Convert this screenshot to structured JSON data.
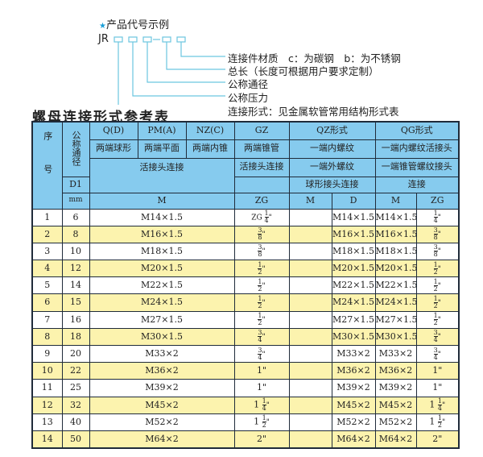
{
  "legend": {
    "heading": "产品代号示例",
    "star_icon": "star-icon",
    "prefix": "JR",
    "separator": "-",
    "line_color": "#6cc6e0",
    "labels": [
      "连接件材质　c：为碳钢　b：为不锈钢",
      "总长（长度可根据用户要求定制）",
      "公称通径",
      "公称压力",
      "连接形式：见金属软管常用结构形式表"
    ]
  },
  "title": "螺母连接形式参考表",
  "colors": {
    "header_bg": "#86cbee",
    "stripe_bg": "#fcf3ae"
  },
  "header": {
    "seq": "序号",
    "nominal": "公称通径",
    "d1": "D1",
    "mm": "mm",
    "types": [
      "Q(D)",
      "PM(A)",
      "NZ(C)",
      "GZ",
      "QZ形式",
      "QG形式"
    ],
    "desc": [
      "两端球形",
      "两端平面",
      "两端内锥",
      "两端锥管",
      "一端内螺纹",
      "一端内螺纹活接头"
    ],
    "conn1": "活接头连接",
    "conn2": "活接头连接",
    "qz_line2": "一端外螺纹",
    "qz_line3": "球形接头连接",
    "qg_line2": "一端锥管螺纹接头",
    "qg_line3": "连接",
    "units": [
      "M",
      "ZG",
      "M",
      "D",
      "M",
      "ZG"
    ]
  },
  "rows": [
    {
      "no": "1",
      "dn": "6",
      "m": "M14×1.5",
      "zg": "ZG|1/4",
      "qz_m": "",
      "qz_d": "M14×1.5",
      "qg_m": "M14×1.5",
      "qg_zg": "|1/4"
    },
    {
      "no": "2",
      "dn": "8",
      "m": "M16×1.5",
      "zg": "|3/8",
      "qz_m": "",
      "qz_d": "M16×1.5",
      "qg_m": "M16×1.5",
      "qg_zg": "|3/8"
    },
    {
      "no": "3",
      "dn": "10",
      "m": "M18×1.5",
      "zg": "|3/8",
      "qz_m": "",
      "qz_d": "M18×1.5",
      "qg_m": "M18×1.5",
      "qg_zg": "|3/8"
    },
    {
      "no": "4",
      "dn": "12",
      "m": "M20×1.5",
      "zg": "|1/2",
      "qz_m": "",
      "qz_d": "M20×1.5",
      "qg_m": "M20×1.5",
      "qg_zg": "|1/2"
    },
    {
      "no": "5",
      "dn": "14",
      "m": "M22×1.5",
      "zg": "|1/2",
      "qz_m": "",
      "qz_d": "M22×1.5",
      "qg_m": "M22×1.5",
      "qg_zg": "|1/2"
    },
    {
      "no": "6",
      "dn": "15",
      "m": "M24×1.5",
      "zg": "|1/2",
      "qz_m": "",
      "qz_d": "M24×1.5",
      "qg_m": "M24×1.5",
      "qg_zg": "|1/2"
    },
    {
      "no": "7",
      "dn": "16",
      "m": "M27×1.5",
      "zg": "|1/2",
      "qz_m": "",
      "qz_d": "M27×1.5",
      "qg_m": "M27×1.5",
      "qg_zg": "|1/2"
    },
    {
      "no": "8",
      "dn": "18",
      "m": "M30×1.5",
      "zg": "|3/4",
      "qz_m": "",
      "qz_d": "M30×1.5",
      "qg_m": "M30×1.5",
      "qg_zg": "|3/4"
    },
    {
      "no": "9",
      "dn": "20",
      "m": "M33×2",
      "zg": "|3/4",
      "qz_m": "",
      "qz_d": "M33×2",
      "qg_m": "M33×2",
      "qg_zg": "|3/4"
    },
    {
      "no": "10",
      "dn": "22",
      "m": "M36×2",
      "zg": "1\"",
      "qz_m": "",
      "qz_d": "M36×2",
      "qg_m": "M36×2",
      "qg_zg": "1\""
    },
    {
      "no": "11",
      "dn": "25",
      "m": "M39×2",
      "zg": "1\"",
      "qz_m": "",
      "qz_d": "M39×2",
      "qg_m": "M39×2",
      "qg_zg": "1\""
    },
    {
      "no": "12",
      "dn": "32",
      "m": "M45×2",
      "zg": "1|1/4",
      "qz_m": "",
      "qz_d": "M45×2",
      "qg_m": "M45×2",
      "qg_zg": "1|1/4"
    },
    {
      "no": "13",
      "dn": "40",
      "m": "M52×2",
      "zg": "1|1/2",
      "qz_m": "",
      "qz_d": "M52×2",
      "qg_m": "M52×2",
      "qg_zg": "1|1/2"
    },
    {
      "no": "14",
      "dn": "50",
      "m": "M64×2",
      "zg": "2\"",
      "qz_m": "",
      "qz_d": "M64×2",
      "qg_m": "M64×2",
      "qg_zg": "2\""
    }
  ]
}
